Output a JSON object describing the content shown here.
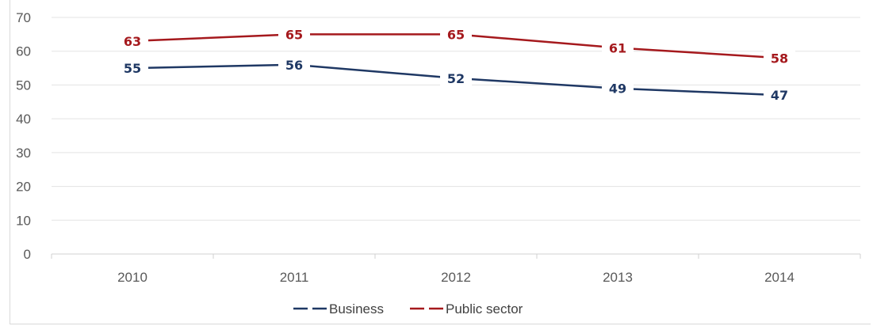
{
  "chart_data": {
    "type": "line",
    "categories": [
      "2010",
      "2011",
      "2012",
      "2013",
      "2014"
    ],
    "ylim": [
      0,
      70
    ],
    "yticks": [
      "0",
      "10",
      "20",
      "30",
      "40",
      "50",
      "60",
      "70"
    ],
    "grid": true,
    "legend_position": "bottom",
    "series": [
      {
        "name": "Business",
        "values": [
          55,
          56,
          52,
          49,
          47
        ],
        "color": "#1f3864"
      },
      {
        "name": "Public sector",
        "values": [
          63,
          65,
          65,
          61,
          58
        ],
        "color": "#a5191d"
      }
    ]
  }
}
